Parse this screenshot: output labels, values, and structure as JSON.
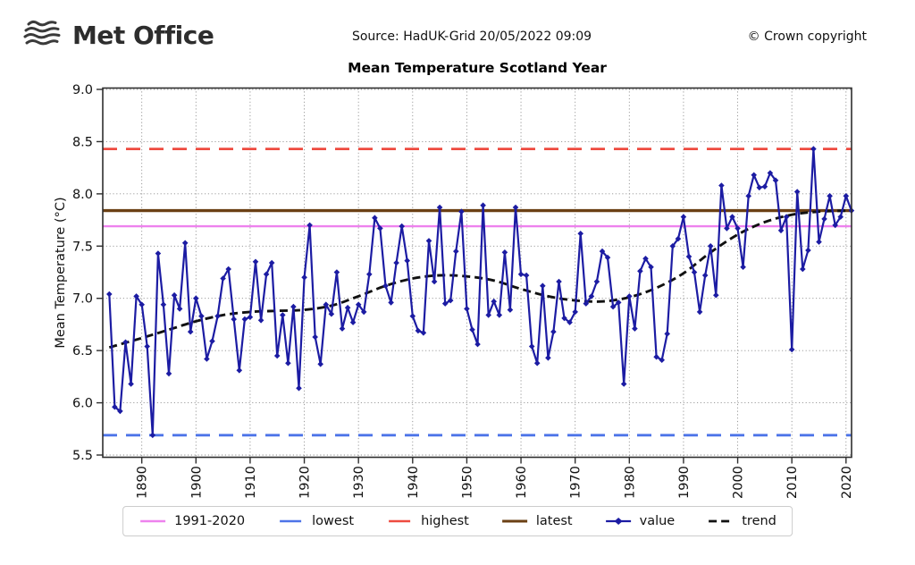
{
  "header": {
    "logo_text": "Met Office",
    "source": "Source: HadUK-Grid 20/05/2022 09:09",
    "copyright": "© Crown copyright"
  },
  "chart_data": {
    "type": "line",
    "title": "Mean Temperature Scotland Year",
    "xlabel": "",
    "ylabel": "Mean Temperature (°C)",
    "ylim": [
      5.5,
      9.0
    ],
    "xlim": [
      1884,
      2021
    ],
    "y_ticks": [
      "9.0",
      "8.5",
      "8.0",
      "7.5",
      "7.0",
      "6.5",
      "6.0",
      "5.5"
    ],
    "x_ticks": [
      1890,
      1900,
      1910,
      1920,
      1930,
      1940,
      1950,
      1960,
      1970,
      1980,
      1990,
      2000,
      2010,
      2020
    ],
    "grid": "dotted",
    "legend_position": "bottom",
    "reference_lines": {
      "avg_1991_2020": 7.69,
      "lowest": 5.69,
      "highest": 8.43,
      "latest": 7.84
    },
    "series": [
      {
        "name": "value",
        "x_start": 1884,
        "x_end": 2021,
        "values": [
          7.04,
          5.96,
          5.92,
          6.58,
          6.18,
          7.02,
          6.94,
          6.54,
          5.69,
          7.43,
          6.94,
          6.28,
          7.03,
          6.9,
          7.53,
          6.68,
          7.0,
          6.83,
          6.42,
          6.59,
          6.83,
          7.19,
          7.28,
          6.8,
          6.31,
          6.8,
          6.82,
          7.35,
          6.79,
          7.23,
          7.34,
          6.45,
          6.84,
          6.38,
          6.92,
          6.14,
          7.2,
          7.7,
          6.63,
          6.37,
          6.94,
          6.85,
          7.25,
          6.71,
          6.91,
          6.77,
          6.94,
          6.87,
          7.23,
          7.77,
          7.67,
          7.12,
          6.96,
          7.34,
          7.69,
          7.36,
          6.83,
          6.69,
          6.67,
          7.55,
          7.16,
          7.87,
          6.95,
          6.98,
          7.45,
          7.83,
          6.9,
          6.7,
          6.56,
          7.89,
          6.84,
          6.97,
          6.84,
          7.44,
          6.89,
          7.87,
          7.23,
          7.22,
          6.54,
          6.38,
          7.12,
          6.43,
          6.68,
          7.16,
          6.81,
          6.77,
          6.87,
          7.62,
          6.95,
          7.02,
          7.16,
          7.45,
          7.39,
          6.92,
          6.96,
          6.18,
          7.02,
          6.71,
          7.26,
          7.38,
          7.3,
          6.44,
          6.41,
          6.66,
          7.5,
          7.57,
          7.78,
          7.4,
          7.25,
          6.87,
          7.22,
          7.5,
          7.03,
          8.08,
          7.67,
          7.78,
          7.67,
          7.3,
          7.98,
          8.18,
          8.06,
          8.07,
          8.2,
          8.13,
          7.65,
          7.78,
          6.51,
          8.02,
          7.28,
          7.46,
          8.43,
          7.54,
          7.76,
          7.98,
          7.7,
          7.78,
          7.98,
          7.84
        ]
      },
      {
        "name": "trend",
        "x": [
          1884,
          1890,
          1895,
          1900,
          1905,
          1910,
          1915,
          1920,
          1925,
          1930,
          1935,
          1940,
          1945,
          1950,
          1955,
          1960,
          1965,
          1970,
          1975,
          1980,
          1985,
          1990,
          1995,
          2000,
          2005,
          2010,
          2015,
          2021
        ],
        "values": [
          6.53,
          6.62,
          6.7,
          6.78,
          6.84,
          6.87,
          6.88,
          6.89,
          6.93,
          7.02,
          7.12,
          7.19,
          7.22,
          7.21,
          7.17,
          7.09,
          7.02,
          6.98,
          6.97,
          7.01,
          7.1,
          7.24,
          7.44,
          7.61,
          7.73,
          7.8,
          7.83,
          7.84
        ]
      }
    ],
    "legend": [
      {
        "label": "1991-2020",
        "color": "#ee82ee",
        "style": "solid"
      },
      {
        "label": "lowest",
        "color": "#4d74e8",
        "style": "dashed"
      },
      {
        "label": "highest",
        "color": "#ee4b40",
        "style": "dashed"
      },
      {
        "label": "latest",
        "color": "#6b4014",
        "style": "solid"
      },
      {
        "label": "value",
        "color": "#1c1ca3",
        "style": "solid-diamond"
      },
      {
        "label": "trend",
        "color": "#111111",
        "style": "dashed"
      }
    ],
    "style": {
      "grid_color": "#8f8f8f",
      "frame_color": "#2e2e2e",
      "tick_label_color": "#111111"
    }
  }
}
